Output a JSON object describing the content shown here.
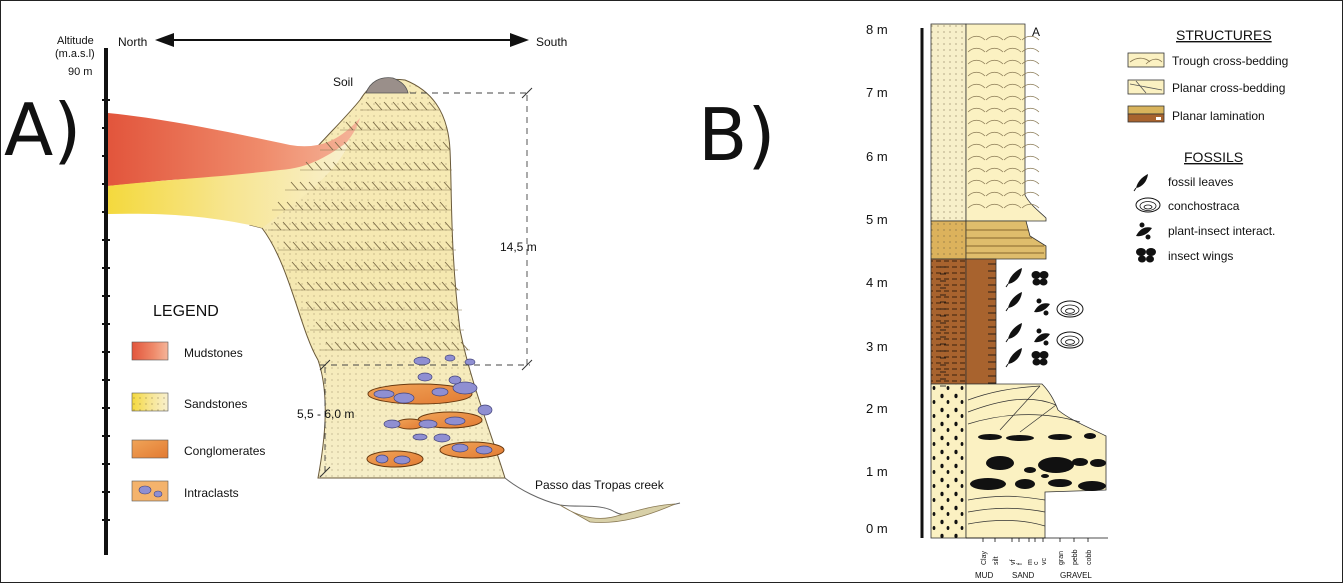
{
  "panel_a": {
    "label": "A)",
    "altitude_label_line1": "Altitude",
    "altitude_label_line2": "(m.a.s.l)",
    "altitude_value": "90 m",
    "north": "North",
    "south": "South",
    "soil": "Soil",
    "thickness_upper": "14,5 m",
    "thickness_lower": "5,5 - 6,0 m",
    "creek": "Passo das Tropas creek",
    "legend": {
      "title": "LEGEND",
      "items": [
        {
          "label": "Mudstones",
          "color": "#e8674a"
        },
        {
          "label": "Sandstones",
          "color": "#f3dc5a"
        },
        {
          "label": "Conglomerates",
          "color": "#f09a4e"
        },
        {
          "label": "Intraclasts",
          "color": "#f4a85c"
        }
      ]
    },
    "colors": {
      "mudstone": "#e8674a",
      "sandstone": "#f6e27a",
      "sand_pale": "#f8f0c8",
      "intraclast": "#8e8fd0",
      "conglomerate": "#e88a3e"
    }
  },
  "panel_b": {
    "label": "B)",
    "column_label": "A",
    "y_ticks": [
      "0 m",
      "1 m",
      "2 m",
      "3 m",
      "4 m",
      "5 m",
      "6 m",
      "7 m",
      "8 m"
    ],
    "grain_ticks": [
      "Clay",
      "silt",
      "vf",
      "f",
      "m",
      "c",
      "vc",
      "gran",
      "pebb",
      "cobb"
    ],
    "grain_groups": [
      "MUD",
      "SAND",
      "GRAVEL"
    ],
    "structures_title": "STRUCTURES",
    "structures": [
      {
        "label": "Trough cross-bedding",
        "icon": "trough-cross-bedding-icon"
      },
      {
        "label": "Planar cross-bedding",
        "icon": "planar-cross-bedding-icon"
      },
      {
        "label": "Planar lamination",
        "icon": "planar-lamination-icon"
      }
    ],
    "fossils_title": "FOSSILS",
    "fossils": [
      {
        "label": "fossil leaves",
        "icon": "leaf-icon"
      },
      {
        "label": "conchostraca",
        "icon": "conchostraca-icon"
      },
      {
        "label": "plant-insect interact.",
        "icon": "plant-insect-icon"
      },
      {
        "label": "insect wings",
        "icon": "insect-wings-icon"
      }
    ],
    "colors": {
      "sand": "#fbf1c2",
      "mud": "#a8632e",
      "lamination": "#d8b35c"
    }
  }
}
